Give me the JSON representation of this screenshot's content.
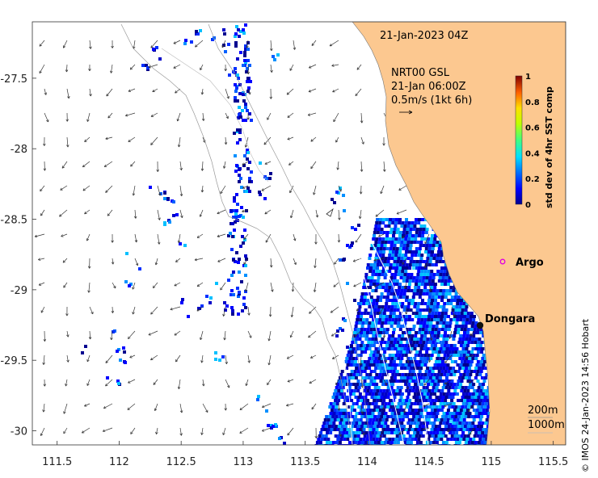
{
  "map": {
    "timestamp": "21-Jan-2023 04Z",
    "current_model": "NRT00 GSL",
    "current_time": "21-Jan 06:00Z",
    "current_scale": "0.5m/s (1kt 6h)",
    "colorbar_label": "std dev of 4hr SST comp",
    "colorbar_ticks": [
      "0",
      "0.2",
      "0.4",
      "0.6",
      "0.8",
      "1"
    ],
    "x_ticks": [
      "111.5",
      "112",
      "112.5",
      "113",
      "113.5",
      "114",
      "114.5",
      "115",
      "115.5"
    ],
    "y_ticks": [
      "-27.5",
      "-28",
      "-28.5",
      "-29",
      "-29.5",
      "-30"
    ],
    "xlim": [
      111.3,
      115.6
    ],
    "ylim": [
      -30.1,
      -27.1
    ],
    "places": [
      {
        "name": "Argo",
        "lon": 115.1,
        "lat": -28.85,
        "marker": "magenta-circle"
      },
      {
        "name": "Dongara",
        "lon": 114.92,
        "lat": -29.25,
        "marker": "black-dot"
      }
    ],
    "isobath_labels": [
      "200m",
      "1000m"
    ],
    "credit": "© IMOS 24-Jan-2023 14:56 Hobart",
    "colors": {
      "land": "#fcc890",
      "ocean": "#ffffff"
    }
  }
}
